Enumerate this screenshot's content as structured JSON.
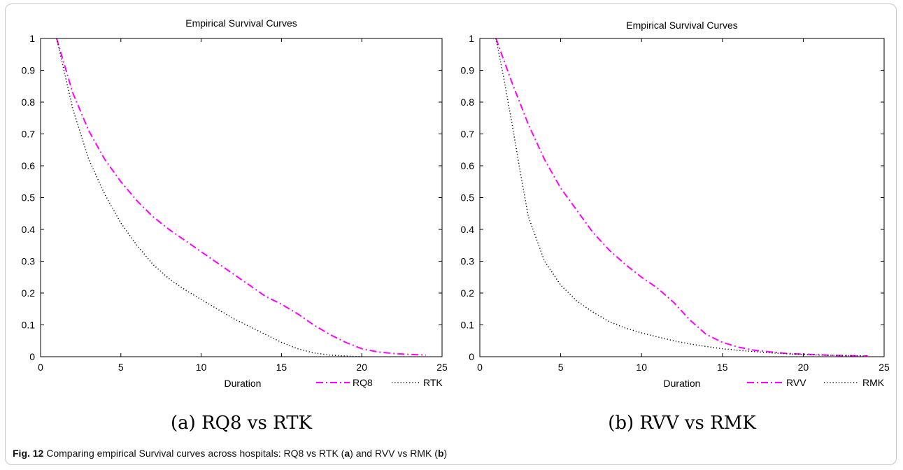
{
  "figure": {
    "panel_a_caption": "(a)  RQ8 vs RTK",
    "panel_b_caption": "(b)  RVV vs RMK",
    "caption_label": "Fig. 12",
    "caption_text_1": " Comparing empirical Survival curves across hospitals: RQ8 vs RTK (",
    "caption_bold_a": "a",
    "caption_text_2": ") and RVV vs RMK (",
    "caption_bold_b": "b",
    "caption_text_3": ")"
  },
  "colors": {
    "series_dashdot": "#ff00ff",
    "series_dotted": "#000000"
  },
  "chart_data": [
    {
      "type": "line",
      "title": "Empirical Survival Curves",
      "xlabel": "Duration",
      "ylabel": "",
      "xlim": [
        0,
        25
      ],
      "ylim": [
        0,
        1
      ],
      "xticks": [
        "0",
        "5",
        "10",
        "15",
        "20",
        "25"
      ],
      "yticks": [
        "0",
        "0.1",
        "0.2",
        "0.3",
        "0.4",
        "0.5",
        "0.6",
        "0.7",
        "0.8",
        "0.9",
        "1"
      ],
      "grid": false,
      "legend_position": "bottom-right",
      "series": [
        {
          "name": "RQ8",
          "style": "dashdot",
          "color": "#ff00ff",
          "x": [
            1,
            2,
            3,
            4,
            5,
            6,
            7,
            8,
            9,
            10,
            11,
            12,
            13,
            14,
            15,
            16,
            17,
            18,
            19,
            20,
            21,
            22,
            23,
            24
          ],
          "y": [
            1.0,
            0.83,
            0.71,
            0.62,
            0.55,
            0.49,
            0.44,
            0.4,
            0.365,
            0.33,
            0.295,
            0.26,
            0.225,
            0.19,
            0.165,
            0.135,
            0.1,
            0.07,
            0.045,
            0.025,
            0.015,
            0.01,
            0.007,
            0.005
          ]
        },
        {
          "name": "RTK",
          "style": "dotted",
          "color": "#000000",
          "x": [
            1,
            2,
            3,
            4,
            5,
            6,
            7,
            8,
            9,
            10,
            11,
            12,
            13,
            14,
            15,
            16,
            17,
            18,
            19,
            20
          ],
          "y": [
            1.0,
            0.78,
            0.62,
            0.51,
            0.42,
            0.35,
            0.29,
            0.245,
            0.21,
            0.18,
            0.15,
            0.12,
            0.095,
            0.07,
            0.045,
            0.025,
            0.012,
            0.005,
            0.002,
            0.0
          ]
        }
      ]
    },
    {
      "type": "line",
      "title": "Empirical Survival Curves",
      "xlabel": "Duration",
      "ylabel": "",
      "xlim": [
        0,
        25
      ],
      "ylim": [
        0,
        1
      ],
      "xticks": [
        "0",
        "5",
        "10",
        "15",
        "20",
        "25"
      ],
      "yticks": [
        "0",
        "0.1",
        "0.2",
        "0.3",
        "0.4",
        "0.5",
        "0.6",
        "0.7",
        "0.8",
        "0.9",
        "1"
      ],
      "grid": false,
      "legend_position": "bottom-right",
      "series": [
        {
          "name": "RVV",
          "style": "dashdot",
          "color": "#ff00ff",
          "x": [
            1,
            2,
            3,
            4,
            5,
            6,
            7,
            8,
            9,
            10,
            11,
            12,
            13,
            14,
            15,
            16,
            17,
            18,
            19,
            20,
            21,
            22,
            23,
            24
          ],
          "y": [
            1.0,
            0.86,
            0.73,
            0.62,
            0.53,
            0.46,
            0.39,
            0.335,
            0.29,
            0.25,
            0.215,
            0.17,
            0.115,
            0.07,
            0.045,
            0.03,
            0.02,
            0.015,
            0.01,
            0.008,
            0.006,
            0.004,
            0.003,
            0.002
          ]
        },
        {
          "name": "RMK",
          "style": "dotted",
          "color": "#000000",
          "x": [
            1,
            1.5,
            2,
            2.5,
            3,
            4,
            5,
            6,
            7,
            8,
            9,
            10,
            11,
            12,
            13,
            14,
            15,
            16,
            17,
            18,
            19,
            20,
            21,
            22,
            23,
            24
          ],
          "y": [
            1.0,
            0.87,
            0.73,
            0.58,
            0.44,
            0.3,
            0.225,
            0.175,
            0.14,
            0.11,
            0.09,
            0.075,
            0.062,
            0.05,
            0.04,
            0.032,
            0.025,
            0.02,
            0.016,
            0.012,
            0.009,
            0.007,
            0.005,
            0.004,
            0.003,
            0.002
          ]
        }
      ]
    }
  ]
}
